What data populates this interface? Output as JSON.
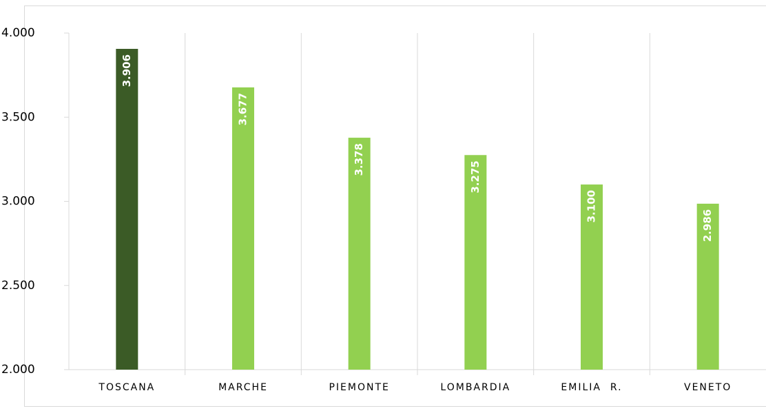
{
  "chart_data": {
    "type": "bar",
    "categories": [
      "TOSCANA",
      "MARCHE",
      "PIEMONTE",
      "LOMBARDIA",
      "EMILIA  R.",
      "VENETO"
    ],
    "values": [
      3906,
      3677,
      3378,
      3275,
      3100,
      2986
    ],
    "value_labels": [
      "3.906",
      "3.677",
      "3.378",
      "3.275",
      "3.100",
      "2.986"
    ],
    "colors": [
      "#3b5b26",
      "#92d050",
      "#92d050",
      "#92d050",
      "#92d050",
      "#92d050"
    ],
    "ylim": [
      2000,
      4000
    ],
    "yticks": [
      {
        "value": 2000,
        "label": "2.000"
      },
      {
        "value": 2500,
        "label": "2.500"
      },
      {
        "value": 3000,
        "label": "3.000"
      },
      {
        "value": 3500,
        "label": "3.500"
      },
      {
        "value": 4000,
        "label": "4.000"
      }
    ],
    "category_separators": true
  }
}
